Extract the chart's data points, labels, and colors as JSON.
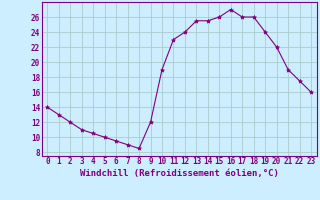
{
  "x": [
    0,
    1,
    2,
    3,
    4,
    5,
    6,
    7,
    8,
    9,
    10,
    11,
    12,
    13,
    14,
    15,
    16,
    17,
    18,
    19,
    20,
    21,
    22,
    23
  ],
  "y": [
    14,
    13,
    12,
    11,
    10.5,
    10,
    9.5,
    9,
    8.5,
    12,
    19,
    23,
    24,
    25.5,
    25.5,
    26,
    27,
    26,
    26,
    24,
    22,
    19,
    17.5,
    16
  ],
  "line_color": "#800080",
  "marker": "*",
  "marker_size": 3,
  "bg_color": "#cceeff",
  "grid_color": "#aacccc",
  "xlabel": "Windchill (Refroidissement éolien,°C)",
  "xlabel_color": "#800080",
  "xlabel_fontsize": 6.5,
  "tick_color": "#800080",
  "tick_fontsize": 5.5,
  "yticks": [
    8,
    10,
    12,
    14,
    16,
    18,
    20,
    22,
    24,
    26
  ],
  "xticks": [
    0,
    1,
    2,
    3,
    4,
    5,
    6,
    7,
    8,
    9,
    10,
    11,
    12,
    13,
    14,
    15,
    16,
    17,
    18,
    19,
    20,
    21,
    22,
    23
  ],
  "ylim": [
    7.5,
    28
  ],
  "xlim": [
    -0.5,
    23.5
  ]
}
